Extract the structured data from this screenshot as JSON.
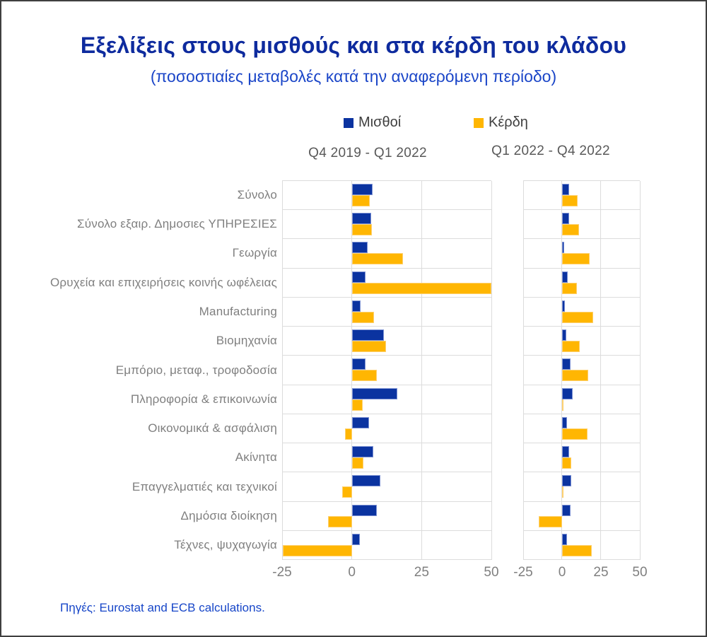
{
  "title": "Εξελίξεις στους μισθούς και στα κέρδη του κλάδου",
  "subtitle": "(ποσοστιαίες μεταβολές κατά την αναφερόμενη περίοδο)",
  "source": "Πηγές: Eurostat and ECB calculations.",
  "legend": {
    "wages": {
      "label": "Μισθοί",
      "color": "#0b33a0"
    },
    "profits": {
      "label": "Κέρδη",
      "color": "#ffb602"
    }
  },
  "colors": {
    "wages_bar": "#0b33a0",
    "profits_bar": "#ffb602",
    "title_text": "#0e2b9e",
    "subtitle_text": "#1b46c8",
    "gridline": "#dcdcdc",
    "axis_text": "#7f7f7f",
    "header_text": "#595959"
  },
  "chart_data": {
    "type": "bar",
    "orientation": "horizontal",
    "grid": true,
    "legend_position": "top",
    "categories": [
      "Σύνολο",
      "Σύνολο εξαιρ. Δημοσιες ΥΠΗΡΕΣΙΕΣ",
      "Γεωργία",
      "Ορυχεία και επιχειρήσεις κοινής ωφέλειας",
      "Manufacturing",
      "Βιομηχανία",
      "Εμπόριο, μεταφ., τροφοδοσία",
      "Πληροφορία & επικοινωνία",
      "Οικονομικά & ασφάλιση",
      "Ακίνητα",
      "Επαγγελματιές και τεχνικοί",
      "Δημόσια διοίκηση",
      "Τέχνες, ψυχαγωγία"
    ],
    "panels": [
      {
        "header": "Q4 2019 - Q1 2022",
        "xlim": [
          -25,
          50
        ],
        "xticks": [
          -25,
          0,
          25,
          50
        ],
        "series": [
          {
            "name": "Μισθοί",
            "values": [
              7.4,
              7.0,
              5.7,
              5.0,
              3.2,
              11.5,
              4.8,
              16.3,
              6.2,
              7.8,
              10.3,
              8.9,
              2.9
            ]
          },
          {
            "name": "Κέρδη",
            "values": [
              6.5,
              7.3,
              18.4,
              50.0,
              7.9,
              12.3,
              9.0,
              3.9,
              -2.4,
              4.2,
              -3.5,
              -8.6,
              -24.8
            ]
          }
        ]
      },
      {
        "header": "Q1 2022 - Q4 2022",
        "xlim": [
          -25,
          50
        ],
        "xticks": [
          -25,
          0,
          25,
          50
        ],
        "series": [
          {
            "name": "Μισθοί",
            "values": [
              4.7,
              4.4,
              1.2,
              3.5,
              2.0,
              2.7,
              5.5,
              7.0,
              3.3,
              4.4,
              5.8,
              5.6,
              3.3
            ]
          },
          {
            "name": "Κέρδη",
            "values": [
              10.2,
              11.1,
              17.8,
              9.7,
              20.2,
              11.4,
              16.6,
              1.0,
              16.3,
              5.9,
              1.0,
              -14.9,
              19.3
            ]
          }
        ]
      }
    ]
  }
}
